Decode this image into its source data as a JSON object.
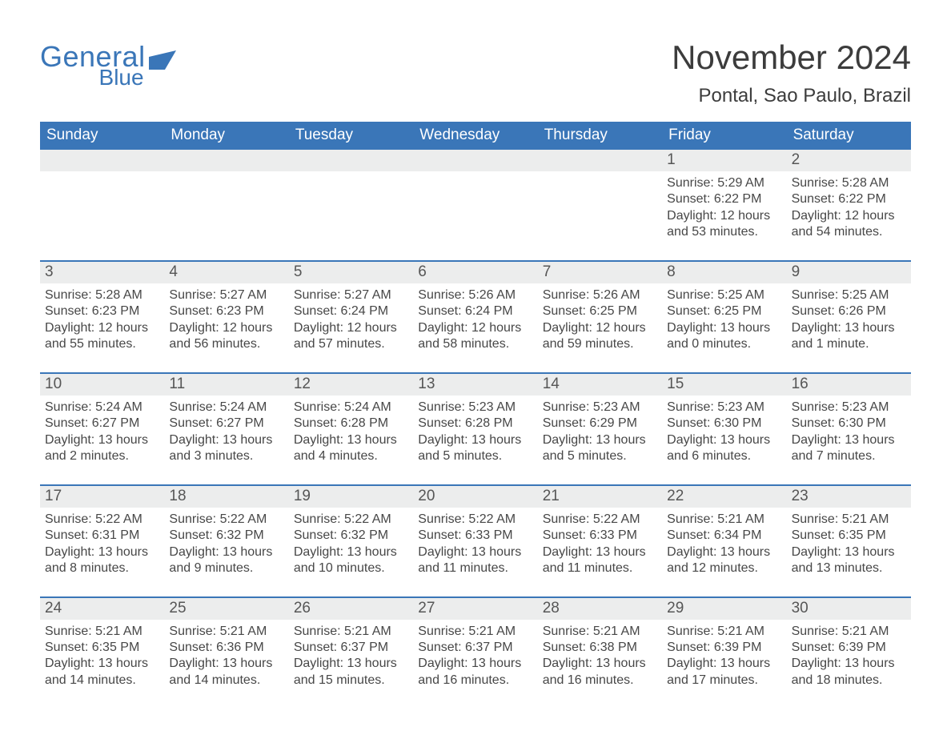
{
  "logo": {
    "general": "General",
    "blue": "Blue"
  },
  "title": "November 2024",
  "subtitle": "Pontal, Sao Paulo, Brazil",
  "colors": {
    "brand_blue": "#3a76b8",
    "header_row_bg": "#eceded",
    "text": "#3a3a3a",
    "background": "#ffffff"
  },
  "weekdays": [
    "Sunday",
    "Monday",
    "Tuesday",
    "Wednesday",
    "Thursday",
    "Friday",
    "Saturday"
  ],
  "weeks": [
    [
      {
        "num": "",
        "sunrise": "",
        "sunset": "",
        "daylight": ""
      },
      {
        "num": "",
        "sunrise": "",
        "sunset": "",
        "daylight": ""
      },
      {
        "num": "",
        "sunrise": "",
        "sunset": "",
        "daylight": ""
      },
      {
        "num": "",
        "sunrise": "",
        "sunset": "",
        "daylight": ""
      },
      {
        "num": "",
        "sunrise": "",
        "sunset": "",
        "daylight": ""
      },
      {
        "num": "1",
        "sunrise": "Sunrise: 5:29 AM",
        "sunset": "Sunset: 6:22 PM",
        "daylight": "Daylight: 12 hours and 53 minutes."
      },
      {
        "num": "2",
        "sunrise": "Sunrise: 5:28 AM",
        "sunset": "Sunset: 6:22 PM",
        "daylight": "Daylight: 12 hours and 54 minutes."
      }
    ],
    [
      {
        "num": "3",
        "sunrise": "Sunrise: 5:28 AM",
        "sunset": "Sunset: 6:23 PM",
        "daylight": "Daylight: 12 hours and 55 minutes."
      },
      {
        "num": "4",
        "sunrise": "Sunrise: 5:27 AM",
        "sunset": "Sunset: 6:23 PM",
        "daylight": "Daylight: 12 hours and 56 minutes."
      },
      {
        "num": "5",
        "sunrise": "Sunrise: 5:27 AM",
        "sunset": "Sunset: 6:24 PM",
        "daylight": "Daylight: 12 hours and 57 minutes."
      },
      {
        "num": "6",
        "sunrise": "Sunrise: 5:26 AM",
        "sunset": "Sunset: 6:24 PM",
        "daylight": "Daylight: 12 hours and 58 minutes."
      },
      {
        "num": "7",
        "sunrise": "Sunrise: 5:26 AM",
        "sunset": "Sunset: 6:25 PM",
        "daylight": "Daylight: 12 hours and 59 minutes."
      },
      {
        "num": "8",
        "sunrise": "Sunrise: 5:25 AM",
        "sunset": "Sunset: 6:25 PM",
        "daylight": "Daylight: 13 hours and 0 minutes."
      },
      {
        "num": "9",
        "sunrise": "Sunrise: 5:25 AM",
        "sunset": "Sunset: 6:26 PM",
        "daylight": "Daylight: 13 hours and 1 minute."
      }
    ],
    [
      {
        "num": "10",
        "sunrise": "Sunrise: 5:24 AM",
        "sunset": "Sunset: 6:27 PM",
        "daylight": "Daylight: 13 hours and 2 minutes."
      },
      {
        "num": "11",
        "sunrise": "Sunrise: 5:24 AM",
        "sunset": "Sunset: 6:27 PM",
        "daylight": "Daylight: 13 hours and 3 minutes."
      },
      {
        "num": "12",
        "sunrise": "Sunrise: 5:24 AM",
        "sunset": "Sunset: 6:28 PM",
        "daylight": "Daylight: 13 hours and 4 minutes."
      },
      {
        "num": "13",
        "sunrise": "Sunrise: 5:23 AM",
        "sunset": "Sunset: 6:28 PM",
        "daylight": "Daylight: 13 hours and 5 minutes."
      },
      {
        "num": "14",
        "sunrise": "Sunrise: 5:23 AM",
        "sunset": "Sunset: 6:29 PM",
        "daylight": "Daylight: 13 hours and 5 minutes."
      },
      {
        "num": "15",
        "sunrise": "Sunrise: 5:23 AM",
        "sunset": "Sunset: 6:30 PM",
        "daylight": "Daylight: 13 hours and 6 minutes."
      },
      {
        "num": "16",
        "sunrise": "Sunrise: 5:23 AM",
        "sunset": "Sunset: 6:30 PM",
        "daylight": "Daylight: 13 hours and 7 minutes."
      }
    ],
    [
      {
        "num": "17",
        "sunrise": "Sunrise: 5:22 AM",
        "sunset": "Sunset: 6:31 PM",
        "daylight": "Daylight: 13 hours and 8 minutes."
      },
      {
        "num": "18",
        "sunrise": "Sunrise: 5:22 AM",
        "sunset": "Sunset: 6:32 PM",
        "daylight": "Daylight: 13 hours and 9 minutes."
      },
      {
        "num": "19",
        "sunrise": "Sunrise: 5:22 AM",
        "sunset": "Sunset: 6:32 PM",
        "daylight": "Daylight: 13 hours and 10 minutes."
      },
      {
        "num": "20",
        "sunrise": "Sunrise: 5:22 AM",
        "sunset": "Sunset: 6:33 PM",
        "daylight": "Daylight: 13 hours and 11 minutes."
      },
      {
        "num": "21",
        "sunrise": "Sunrise: 5:22 AM",
        "sunset": "Sunset: 6:33 PM",
        "daylight": "Daylight: 13 hours and 11 minutes."
      },
      {
        "num": "22",
        "sunrise": "Sunrise: 5:21 AM",
        "sunset": "Sunset: 6:34 PM",
        "daylight": "Daylight: 13 hours and 12 minutes."
      },
      {
        "num": "23",
        "sunrise": "Sunrise: 5:21 AM",
        "sunset": "Sunset: 6:35 PM",
        "daylight": "Daylight: 13 hours and 13 minutes."
      }
    ],
    [
      {
        "num": "24",
        "sunrise": "Sunrise: 5:21 AM",
        "sunset": "Sunset: 6:35 PM",
        "daylight": "Daylight: 13 hours and 14 minutes."
      },
      {
        "num": "25",
        "sunrise": "Sunrise: 5:21 AM",
        "sunset": "Sunset: 6:36 PM",
        "daylight": "Daylight: 13 hours and 14 minutes."
      },
      {
        "num": "26",
        "sunrise": "Sunrise: 5:21 AM",
        "sunset": "Sunset: 6:37 PM",
        "daylight": "Daylight: 13 hours and 15 minutes."
      },
      {
        "num": "27",
        "sunrise": "Sunrise: 5:21 AM",
        "sunset": "Sunset: 6:37 PM",
        "daylight": "Daylight: 13 hours and 16 minutes."
      },
      {
        "num": "28",
        "sunrise": "Sunrise: 5:21 AM",
        "sunset": "Sunset: 6:38 PM",
        "daylight": "Daylight: 13 hours and 16 minutes."
      },
      {
        "num": "29",
        "sunrise": "Sunrise: 5:21 AM",
        "sunset": "Sunset: 6:39 PM",
        "daylight": "Daylight: 13 hours and 17 minutes."
      },
      {
        "num": "30",
        "sunrise": "Sunrise: 5:21 AM",
        "sunset": "Sunset: 6:39 PM",
        "daylight": "Daylight: 13 hours and 18 minutes."
      }
    ]
  ]
}
